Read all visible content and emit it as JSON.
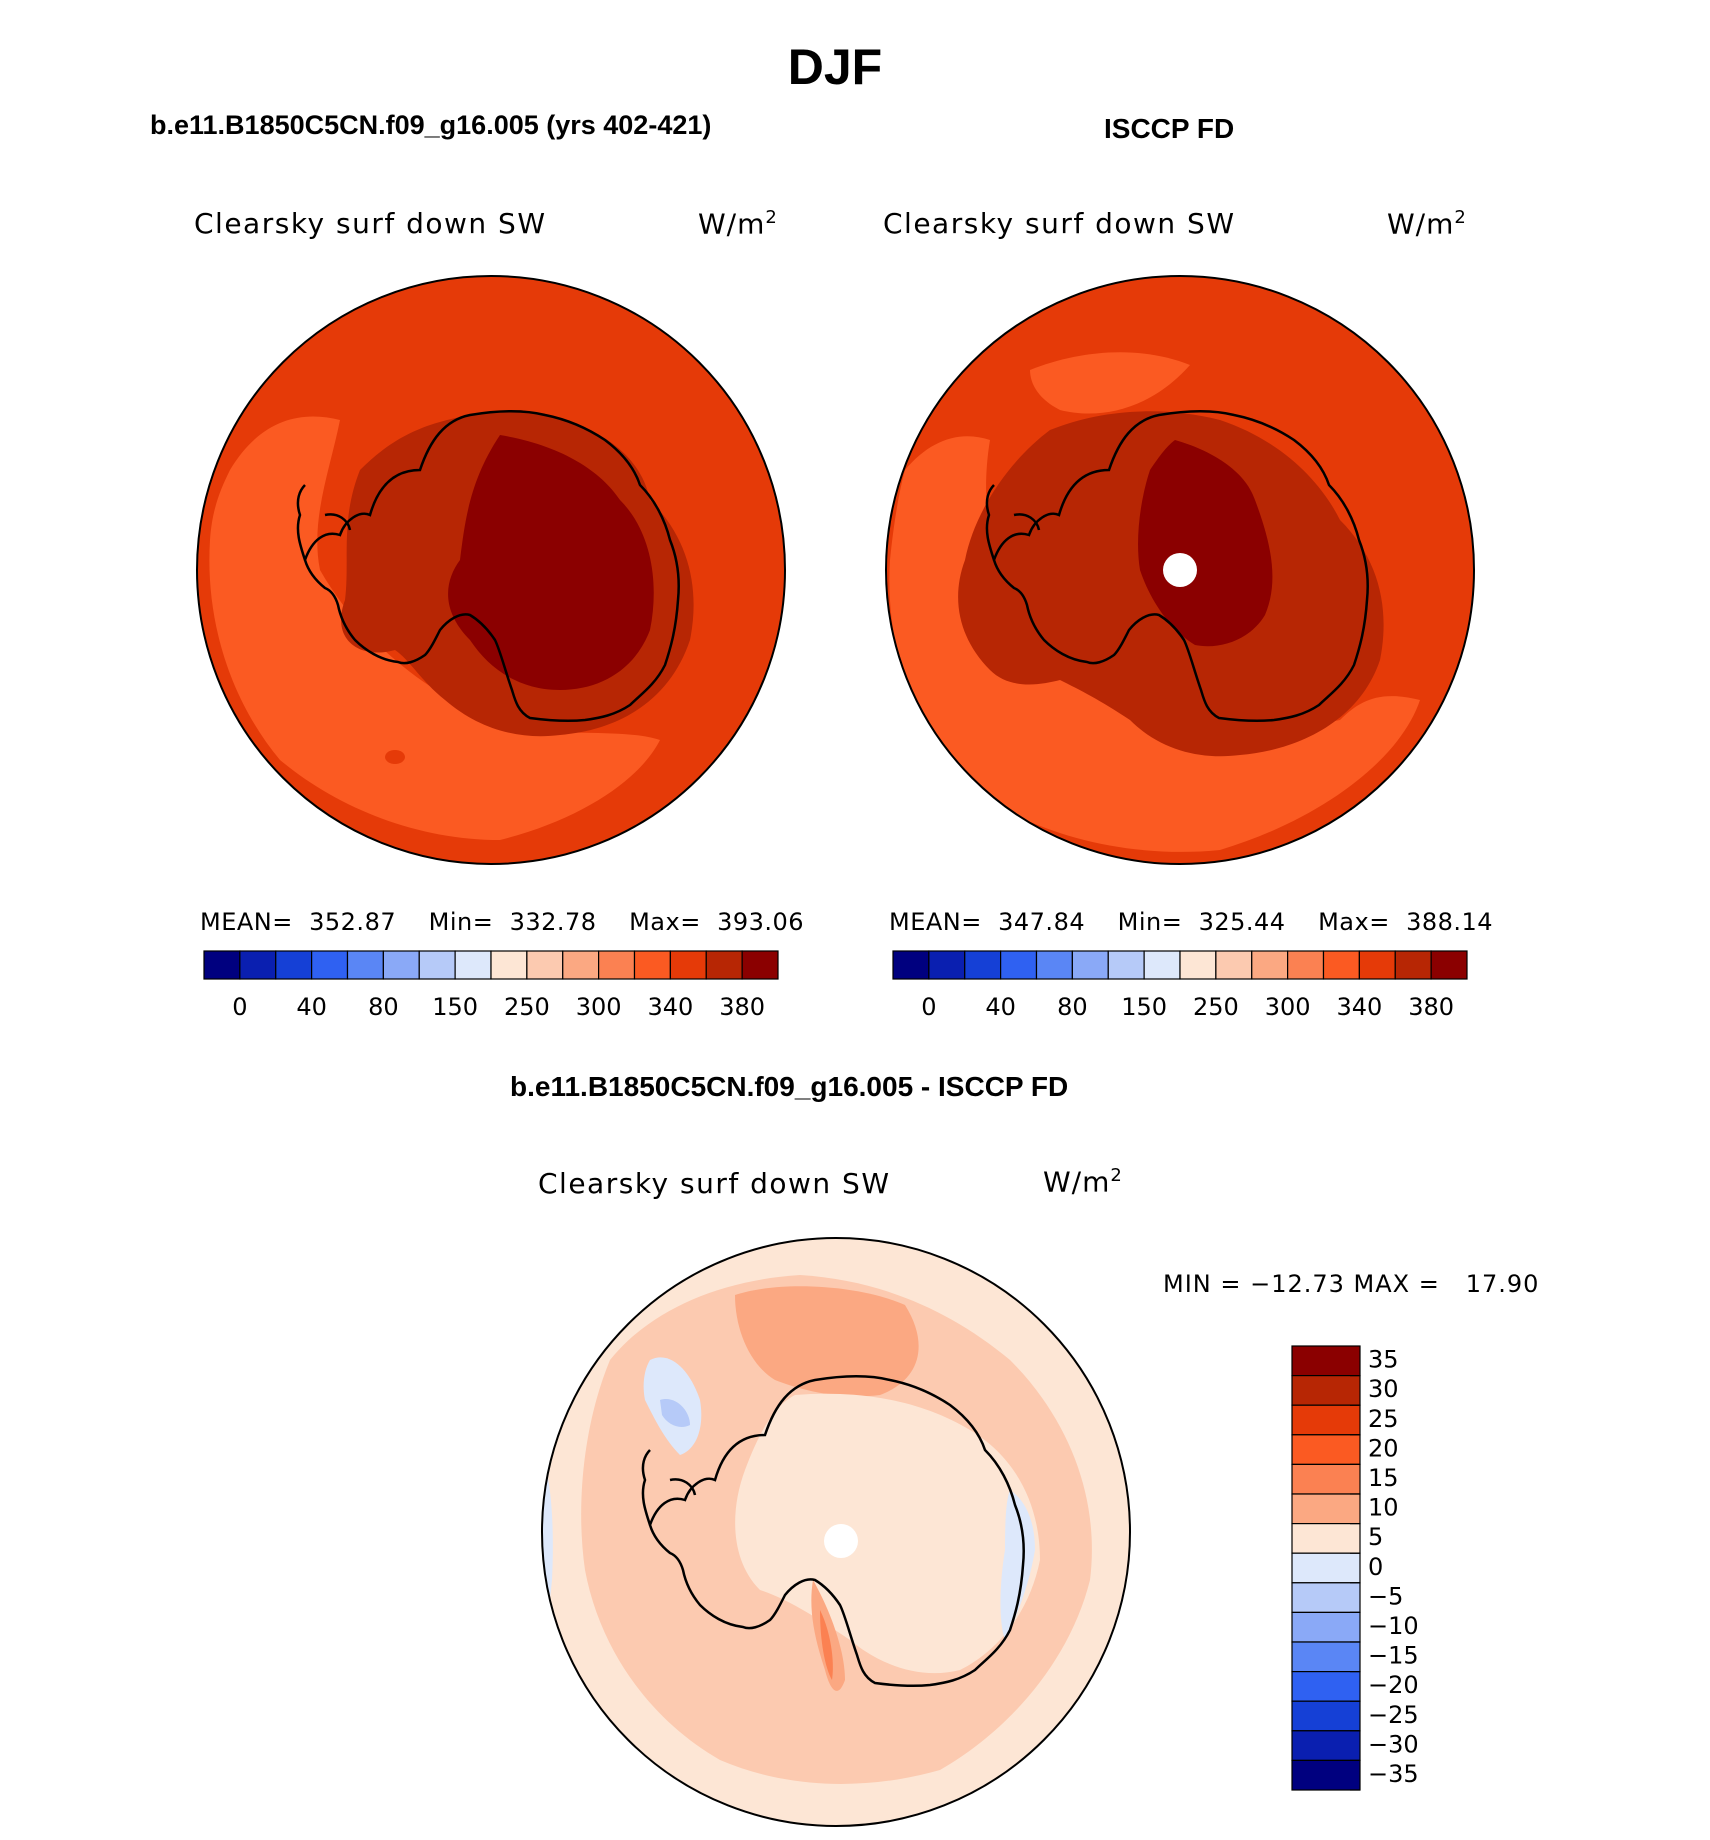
{
  "chart_data": {
    "type": "heatmap",
    "title": "DJF",
    "projection": "south polar stereographic",
    "panels": [
      {
        "id": "model",
        "case_title": "b.e11.B1850C5CN.f09_g16.005 (yrs 402-421)",
        "variable": "Clearsky surf down SW",
        "units": "W/m",
        "units_exp": "2",
        "stats": {
          "mean_label": "MEAN=",
          "mean": "352.87",
          "min_label": "Min=",
          "min": "332.78",
          "max_label": "Max=",
          "max": "393.06"
        },
        "colorbar_ticks": [
          "0",
          "40",
          "80",
          "150",
          "250",
          "300",
          "340",
          "380"
        ]
      },
      {
        "id": "obs",
        "case_title": "ISCCP FD",
        "variable": "Clearsky surf down SW",
        "units": "W/m",
        "units_exp": "2",
        "stats": {
          "mean_label": "MEAN=",
          "mean": "347.84",
          "min_label": "Min=",
          "min": "325.44",
          "max_label": "Max=",
          "max": "388.14"
        },
        "colorbar_ticks": [
          "0",
          "40",
          "80",
          "150",
          "250",
          "300",
          "340",
          "380"
        ]
      },
      {
        "id": "diff",
        "case_title": "b.e11.B1850C5CN.f09_g16.005 - ISCCP FD",
        "variable": "Clearsky surf down SW",
        "units": "W/m",
        "units_exp": "2",
        "stats_text": "MIN = −12.73 MAX =   17.90",
        "colorbar_ticks": [
          "35",
          "30",
          "25",
          "20",
          "15",
          "10",
          "5",
          "0",
          "−5",
          "−10",
          "−15",
          "−20",
          "−25",
          "−30",
          "−35"
        ]
      }
    ],
    "colorbar_colors_abs": [
      "#00007f",
      "#0a1fb0",
      "#1540d6",
      "#2f61f2",
      "#5a86f5",
      "#8aa9f7",
      "#b6caf8",
      "#dde8fb",
      "#fde6d5",
      "#fccab0",
      "#fba882",
      "#fb8152",
      "#fb5a22",
      "#e53a08",
      "#b72604",
      "#8b0000"
    ],
    "colorbar_colors_diff": [
      "#8b0000",
      "#b72604",
      "#e53a08",
      "#fb5a22",
      "#fb8152",
      "#fba882",
      "#fde6d5",
      "#dde8fb",
      "#b6caf8",
      "#8aa9f7",
      "#5a86f5",
      "#2f61f2",
      "#1540d6",
      "#0a1fb0",
      "#00007f"
    ]
  }
}
